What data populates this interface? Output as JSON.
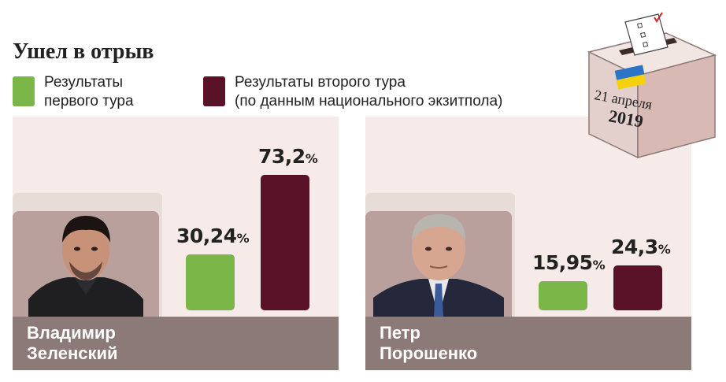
{
  "title": "Ушел в отрыв",
  "legend": {
    "first_round": "Результаты\nпервого тура",
    "second_round": "Результаты второго тура\n(по данным национального экзитпола)"
  },
  "date": {
    "day_month": "21 апреля",
    "year": "2019"
  },
  "colors": {
    "first_round": "#7ab648",
    "second_round": "#5a1228",
    "panel_bg": "#f6ebe9",
    "name_bar": "#8c7a78"
  },
  "chart_data": {
    "type": "bar",
    "title": "Ушел в отрыв",
    "categories": [
      "Владимир\nЗеленский",
      "Петр\nПорошенко"
    ],
    "series": [
      {
        "name": "Результаты первого тура",
        "values": [
          30.24,
          15.95
        ],
        "labels": [
          "30,24",
          "15,95"
        ],
        "color": "#7ab648"
      },
      {
        "name": "Результаты второго тура (по данным национального экзитпола)",
        "values": [
          73.2,
          24.3
        ],
        "labels": [
          "73,2",
          "24,3"
        ],
        "color": "#5a1228"
      }
    ],
    "unit": "%",
    "legend_position": "top-left",
    "ylim": [
      0,
      75
    ],
    "grid": false
  }
}
